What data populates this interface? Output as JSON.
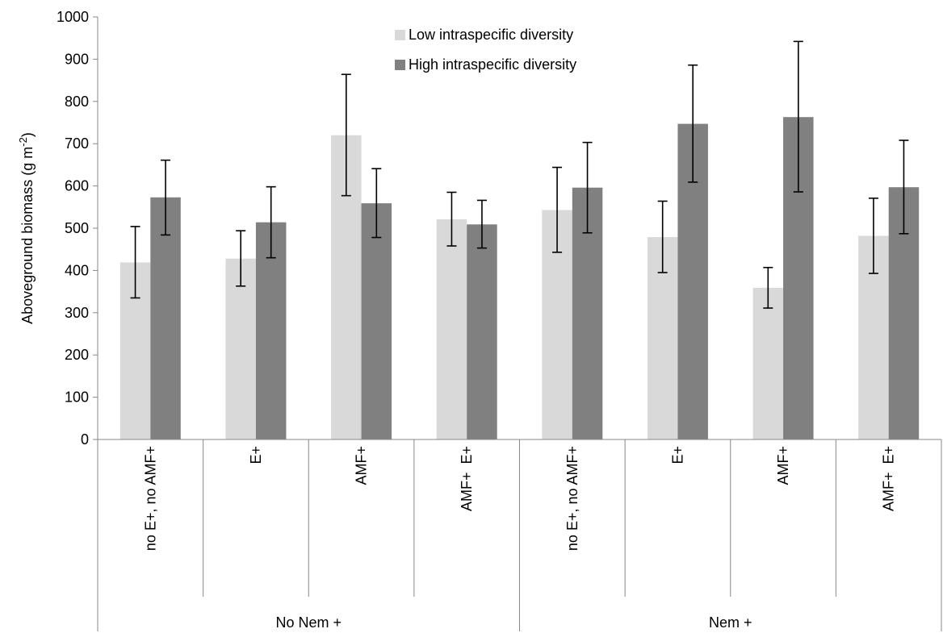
{
  "chart_data": {
    "type": "bar",
    "ylabel": "Aboveground biomass (g m",
    "ylabel_sup": "-2",
    "ylabel_tail": ")",
    "ylim": [
      0,
      1000
    ],
    "yticks": [
      0,
      100,
      200,
      300,
      400,
      500,
      600,
      700,
      800,
      900,
      1000
    ],
    "grid": false,
    "legend_position": "top-center",
    "groups": [
      {
        "label": "No Nem +",
        "span": 4
      },
      {
        "label": "Nem +",
        "span": 4
      }
    ],
    "categories": [
      "no E+, no AMF+",
      "E+",
      "AMF+",
      "AMF+  E+",
      "no E+, no AMF+",
      "E+",
      "AMF+",
      "AMF+  E+"
    ],
    "series": [
      {
        "name": "Low intraspecific diversity",
        "color": "#d9d9d9",
        "values": [
          419,
          428,
          720,
          521,
          543,
          479,
          359,
          482
        ],
        "error_low": [
          335,
          363,
          577,
          458,
          443,
          395,
          311,
          393
        ],
        "error_high": [
          504,
          494,
          864,
          585,
          644,
          564,
          407,
          571
        ]
      },
      {
        "name": "High intraspecific diversity",
        "color": "#808080",
        "values": [
          573,
          514,
          559,
          509,
          596,
          747,
          763,
          597
        ],
        "error_low": [
          484,
          430,
          478,
          453,
          489,
          609,
          586,
          487
        ],
        "error_high": [
          661,
          598,
          641,
          566,
          703,
          886,
          942,
          708
        ]
      }
    ]
  }
}
